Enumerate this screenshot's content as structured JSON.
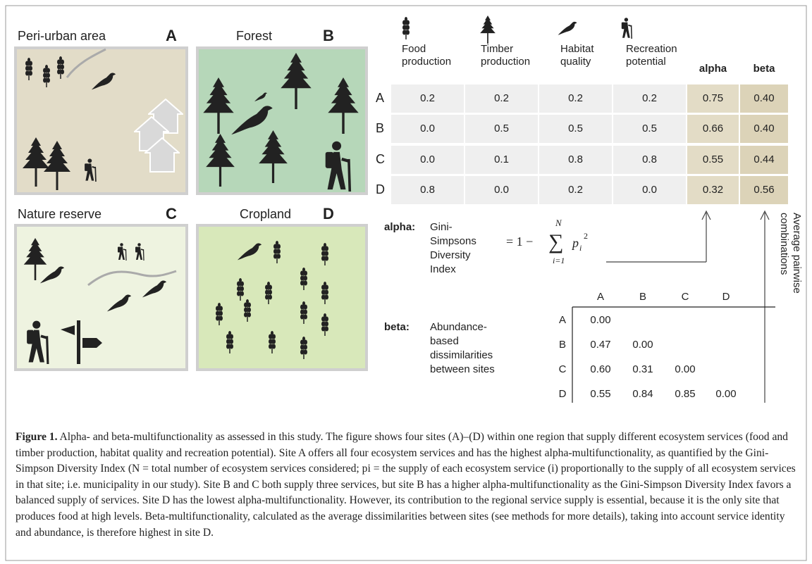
{
  "panels": [
    {
      "title": "Peri-urban area",
      "letter": "A"
    },
    {
      "title": "Forest",
      "letter": "B"
    },
    {
      "title": "Nature reserve",
      "letter": "C"
    },
    {
      "title": "Cropland",
      "letter": "D"
    }
  ],
  "table": {
    "headers": [
      [
        "Food",
        "production"
      ],
      [
        "Timber",
        "production"
      ],
      [
        "Habitat",
        "quality"
      ],
      [
        "Recreation",
        "potential"
      ],
      [
        "alpha"
      ],
      [
        "beta"
      ]
    ],
    "rows": [
      {
        "label": "A",
        "values": [
          "0.2",
          "0.2",
          "0.2",
          "0.2",
          "0.75",
          "0.40"
        ]
      },
      {
        "label": "B",
        "values": [
          "0.0",
          "0.5",
          "0.5",
          "0.5",
          "0.66",
          "0.40"
        ]
      },
      {
        "label": "C",
        "values": [
          "0.0",
          "0.1",
          "0.8",
          "0.8",
          "0.55",
          "0.44"
        ]
      },
      {
        "label": "D",
        "values": [
          "0.8",
          "0.0",
          "0.2",
          "0.0",
          "0.32",
          "0.56"
        ]
      }
    ]
  },
  "alpha": {
    "label": "alpha:",
    "description": [
      "Gini-",
      "Simpsons",
      "Diversity",
      "Index"
    ],
    "formula": {
      "lhs": "= 1 −",
      "sum": "∑",
      "upper": "N",
      "lower": "i=1",
      "term": "p",
      "sub": "i",
      "sup": "2"
    }
  },
  "beta": {
    "label": "beta:",
    "description": [
      "Abundance-",
      "based",
      "dissimilarities",
      "between sites"
    ],
    "matrix": {
      "columns": [
        "A",
        "B",
        "C",
        "D"
      ],
      "rows": [
        {
          "label": "A",
          "values": [
            "0.00"
          ]
        },
        {
          "label": "B",
          "values": [
            "0.47",
            "0.00"
          ]
        },
        {
          "label": "C",
          "values": [
            "0.60",
            "0.31",
            "0.00"
          ]
        },
        {
          "label": "D",
          "values": [
            "0.55",
            "0.84",
            "0.85",
            "0.00"
          ]
        }
      ]
    }
  },
  "arrow_label": [
    "Average pairwise",
    "combinations"
  ],
  "caption": {
    "label": "Figure 1.",
    "text": "Alpha- and beta-multifunctionality as assessed in this study. The figure shows four sites (A)–(D) within one region that supply different ecosystem services (food and timber production, habitat quality and recreation potential). Site A offers all four ecosystem services and has the highest alpha-multifunctionality, as quantified by the Gini-Simpson Diversity Index (N = total number of ecosystem services considered; pi = the supply of each ecosystem service (i) proportionally to the supply of all ecosystem services in that site; i.e. municipality in our study). Site B and C both supply three services, but site B has a higher alpha-multifunctionality as the Gini-Simpson Diversity Index favors a balanced supply of services. Site D has the lowest alpha-multifunctionality. However, its contribution to the regional service supply is essential, because it is the only site that produces food at high levels. Beta-multifunctionality, calculated as the average dissimilarities between sites (see methods for more details), taking into account service identity and abundance, is therefore highest in site D."
  }
}
